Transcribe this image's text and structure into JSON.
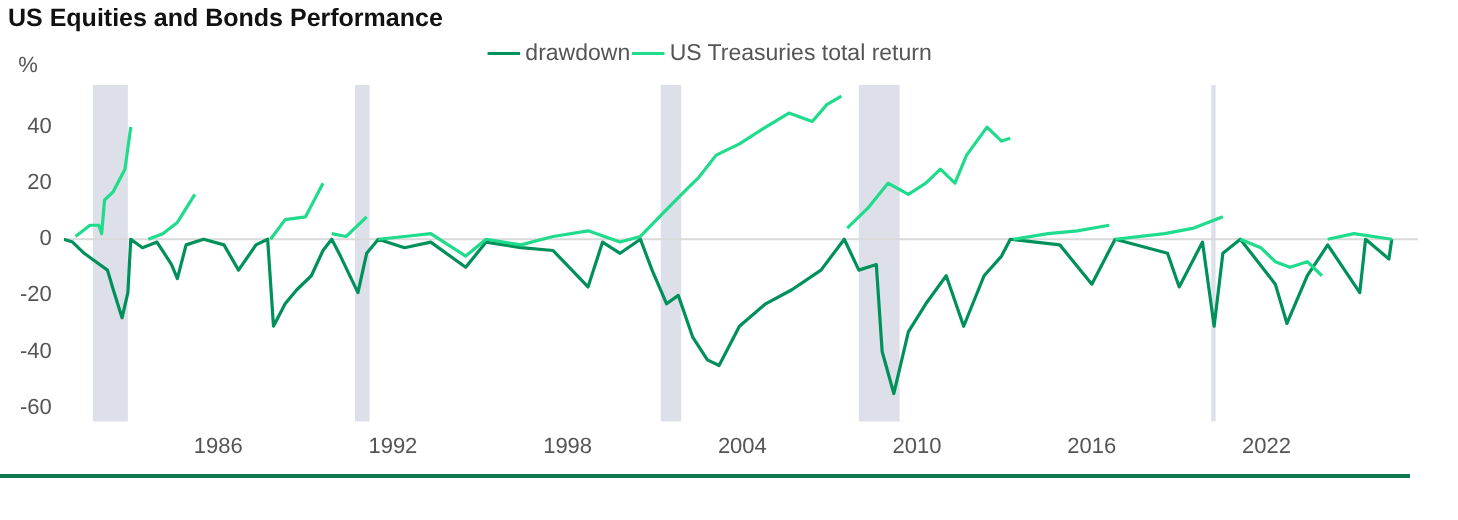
{
  "chart_data": {
    "type": "line",
    "title": "US Equities and Bonds Performance",
    "ylabel": "%",
    "xlim": [
      1980.7,
      2027.2
    ],
    "xticks": [
      1986,
      1992,
      1998,
      2004,
      2010,
      2016,
      2022
    ],
    "ylim": [
      -65,
      55
    ],
    "yticks": [
      -60,
      -40,
      -20,
      0,
      20,
      40
    ],
    "grid": false,
    "legend": "top",
    "line_style": "solid",
    "bands": [
      {
        "axis": "x",
        "from": 1981.7,
        "to": 1982.9,
        "color": "#dde0e8"
      },
      {
        "axis": "x",
        "from": 1990.7,
        "to": 1991.2,
        "color": "#dde0e8"
      },
      {
        "axis": "x",
        "from": 2001.2,
        "to": 2001.9,
        "color": "#dde0e8"
      },
      {
        "axis": "x",
        "from": 2008.0,
        "to": 2009.4,
        "color": "#dde0e8"
      },
      {
        "axis": "x",
        "from": 2020.1,
        "to": 2020.25,
        "color": "#dde0e8"
      }
    ],
    "ref_lines": [
      {
        "axis": "y",
        "value": 0,
        "color": "#d9d9d9"
      }
    ],
    "series": [
      {
        "name": "drawdown",
        "color": "#00905a",
        "x": [
          1980.7,
          1981.0,
          1981.4,
          1981.8,
          1982.2,
          1982.4,
          1982.7,
          1982.9,
          1983.0,
          1983.4,
          1983.9,
          1984.4,
          1984.6,
          1984.9,
          1985.5,
          1986.2,
          1986.7,
          1987.3,
          1987.7,
          1987.9,
          1988.3,
          1988.7,
          1989.2,
          1989.6,
          1989.9,
          1990.2,
          1990.8,
          1991.1,
          1991.5,
          1992.4,
          1993.3,
          1994.5,
          1995.2,
          1996.4,
          1997.5,
          1998.7,
          1999.2,
          1999.8,
          2000.5,
          2000.9,
          2001.4,
          2001.8,
          2002.3,
          2002.8,
          2003.2,
          2003.9,
          2004.8,
          2005.7,
          2006.7,
          2007.5,
          2008.0,
          2008.6,
          2008.8,
          2009.2,
          2009.7,
          2010.3,
          2011.0,
          2011.6,
          2012.3,
          2012.9,
          2013.2,
          2014.9,
          2016.0,
          2016.8,
          2018.6,
          2019.0,
          2019.8,
          2020.2,
          2020.5,
          2021.1,
          2022.3,
          2022.7,
          2023.4,
          2024.1,
          2025.2,
          2025.4,
          2026.2,
          2026.3
        ],
        "values": [
          0,
          -1,
          -5,
          -8,
          -11,
          -18,
          -28,
          -19,
          0,
          -3,
          -1,
          -9,
          -14,
          -2,
          0,
          -2,
          -11,
          -2,
          0,
          -31,
          -23,
          -18,
          -13,
          -4,
          0,
          -6,
          -19,
          -5,
          0,
          -3,
          -1,
          -10,
          -1,
          -3,
          -4,
          -17,
          -1,
          -5,
          0,
          -11,
          -23,
          -20,
          -35,
          -43,
          -45,
          -31,
          -23,
          -18,
          -11,
          0,
          -11,
          -9,
          -40,
          -55,
          -33,
          -23,
          -13,
          -31,
          -13,
          -6,
          0,
          -2,
          -16,
          0,
          -5,
          -17,
          -1,
          -31,
          -5,
          0,
          -16,
          -30,
          -13,
          -2,
          -19,
          0,
          -7,
          0
        ]
      },
      {
        "name": "US Treasuries total return",
        "color": "#1fdb8c",
        "x": [
          1981.1,
          1981.6,
          1981.9,
          1982.0,
          1982.1,
          1982.4,
          1982.8,
          1983.0,
          1983.3,
          1983.6,
          1984.1,
          1984.6,
          1985.2,
          1985.5,
          1987.8,
          1988.3,
          1989.0,
          1989.2,
          1989.6,
          1989.75,
          1989.9,
          1990.4,
          1991.1,
          1991.3,
          1991.5,
          1992.4,
          1993.3,
          1994.5,
          1995.2,
          1996.4,
          1997.5,
          1998.7,
          1999.8,
          2000.5,
          2001.15,
          2002.1,
          2002.5,
          2003.1,
          2003.9,
          2004.8,
          2005.6,
          2006.4,
          2006.9,
          2007.4,
          2007.5,
          2007.6,
          2008.3,
          2009.0,
          2009.7,
          2010.3,
          2010.8,
          2011.3,
          2011.7,
          2012.4,
          2012.9,
          2013.2,
          2013.25,
          2013.3,
          2014.5,
          2015.5,
          2016.6,
          2016.7,
          2016.8,
          2018.5,
          2019.5,
          2020.5,
          2020.8,
          2021.1,
          2021.8,
          2022.3,
          2022.8,
          2023.4,
          2023.9,
          2024.0,
          2024.1,
          2025.0,
          2026.3
        ],
        "values": [
          1,
          5,
          5,
          2,
          14,
          17,
          25,
          40,
          null,
          0,
          2,
          6,
          16,
          null,
          0,
          7,
          8,
          12,
          20,
          null,
          2,
          1,
          8,
          null,
          0,
          1,
          2,
          -6,
          0,
          -2,
          1,
          3,
          -1,
          1,
          8,
          18,
          22,
          30,
          34,
          40,
          45,
          42,
          48,
          51,
          null,
          4,
          11,
          20,
          16,
          20,
          25,
          20,
          30,
          40,
          35,
          36,
          null,
          0,
          2,
          3,
          5,
          null,
          0,
          2,
          4,
          8,
          null,
          0,
          -3,
          -8,
          -10,
          -8,
          -13,
          null,
          0,
          2,
          0
        ]
      }
    ]
  }
}
